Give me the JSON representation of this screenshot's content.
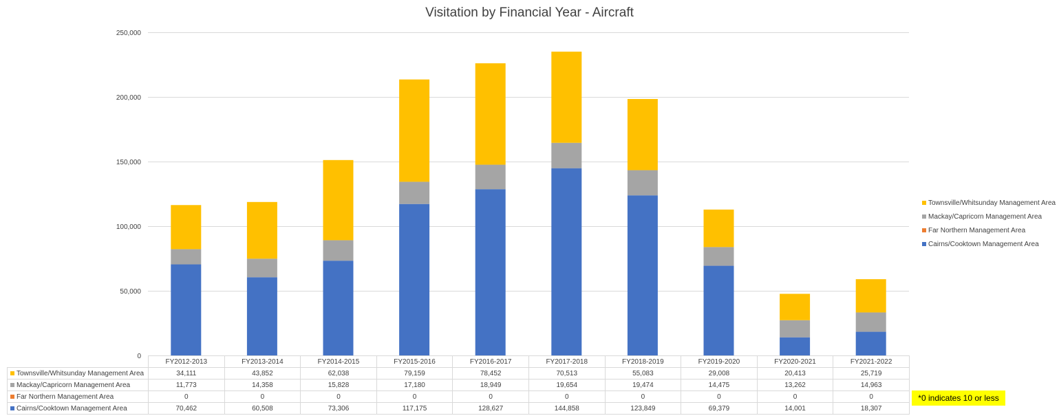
{
  "chart_data": {
    "type": "bar",
    "stacked": true,
    "title": "Visitation by Financial Year - Aircraft",
    "categories": [
      "FY2012-2013",
      "FY2013-2014",
      "FY2014-2015",
      "FY2015-2016",
      "FY2016-2017",
      "FY2017-2018",
      "FY2018-2019",
      "FY2019-2020",
      "FY2020-2021",
      "FY2021-2022"
    ],
    "ylim": [
      0,
      250000
    ],
    "yticks": [
      0,
      50000,
      100000,
      150000,
      200000,
      250000
    ],
    "ytick_labels": [
      "0",
      "50,000",
      "100,000",
      "150,000",
      "200,000",
      "250,000"
    ],
    "grid": true,
    "legend_position": "right",
    "series": [
      {
        "name": "Cairns/Cooktown Management Area",
        "color": "#4472C4",
        "values": [
          70462,
          60508,
          73306,
          117175,
          128627,
          144858,
          123849,
          69379,
          14001,
          18307
        ],
        "labels": [
          "70,462",
          "60,508",
          "73,306",
          "117,175",
          "128,627",
          "144,858",
          "123,849",
          "69,379",
          "14,001",
          "18,307"
        ]
      },
      {
        "name": "Far Northern Management Area",
        "color": "#ED7D31",
        "values": [
          0,
          0,
          0,
          0,
          0,
          0,
          0,
          0,
          0,
          0
        ],
        "labels": [
          "0",
          "0",
          "0",
          "0",
          "0",
          "0",
          "0",
          "0",
          "0",
          "0"
        ]
      },
      {
        "name": "Mackay/Capricorn Management Area",
        "color": "#A5A5A5",
        "values": [
          11773,
          14358,
          15828,
          17180,
          18949,
          19654,
          19474,
          14475,
          13262,
          14963
        ],
        "labels": [
          "11,773",
          "14,358",
          "15,828",
          "17,180",
          "18,949",
          "19,654",
          "19,474",
          "14,475",
          "13,262",
          "14,963"
        ]
      },
      {
        "name": "Townsville/Whitsunday Management Area",
        "color": "#FFC000",
        "values": [
          34111,
          43852,
          62038,
          79159,
          78452,
          70513,
          55083,
          29008,
          20413,
          25719
        ],
        "labels": [
          "34,111",
          "43,852",
          "62,038",
          "79,159",
          "78,452",
          "70,513",
          "55,083",
          "29,008",
          "20,413",
          "25,719"
        ]
      }
    ],
    "legend_order": [
      3,
      2,
      1,
      0
    ],
    "table_row_order": [
      3,
      2,
      1,
      0
    ]
  },
  "note": "*0 indicates 10 or less"
}
